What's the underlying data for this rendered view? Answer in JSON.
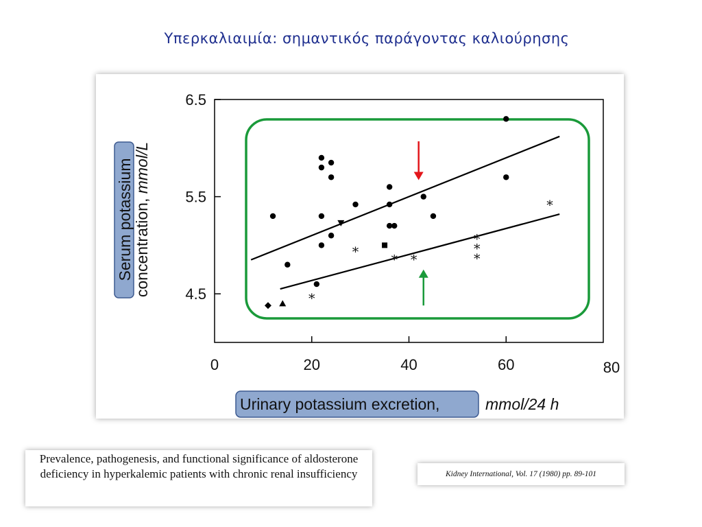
{
  "slide": {
    "title": "Υπερκαλιαιμία: σημαντικός παράγοντας καλιούρησης"
  },
  "references": {
    "article_title": "Prevalence, pathogenesis, and functional significance of aldosterone deficiency in hyperkalemic patients with chronic renal insufficiency",
    "journal": "Kidney International, Vol. 17 (1980) pp. 89-101"
  },
  "colors": {
    "highlight_box": "#1a9a3a",
    "label_box_fill": "#8fa8cf",
    "label_box_border": "#3d5a90",
    "arrow_up": "#1a9a3a",
    "arrow_down": "#e3161b",
    "title": "#1f2f8f"
  },
  "chart_data": {
    "type": "scatter",
    "xlabel_highlight": "Urinary potassium excretion,",
    "xlabel_unit": "mmol/24 h",
    "ylabel_highlight": "Serum potassium",
    "ylabel_rest": "concentration,",
    "ylabel_unit": "mmol/L",
    "xlim": [
      0,
      80
    ],
    "ylim": [
      4.0,
      6.5
    ],
    "x_ticks": [
      {
        "value": 0,
        "label": "0"
      },
      {
        "value": 20,
        "label": "20"
      },
      {
        "value": 40,
        "label": "40"
      },
      {
        "value": 60,
        "label": "60"
      },
      {
        "value": 80,
        "label": "80"
      }
    ],
    "y_ticks": [
      {
        "value": 4.5,
        "label": "4.5"
      },
      {
        "value": 5.5,
        "label": "5.5"
      },
      {
        "value": 6.5,
        "label": "6.5"
      }
    ],
    "series": [
      {
        "marker": "circle",
        "points": [
          [
            12,
            5.3
          ],
          [
            22,
            5.9
          ],
          [
            22,
            5.8
          ],
          [
            24,
            5.85
          ],
          [
            24,
            5.7
          ],
          [
            22,
            5.3
          ],
          [
            22,
            5.0
          ],
          [
            24,
            5.1
          ],
          [
            29,
            5.42
          ],
          [
            15,
            4.8
          ],
          [
            21,
            4.6
          ],
          [
            36,
            5.6
          ],
          [
            36,
            5.42
          ],
          [
            36,
            5.2
          ],
          [
            37,
            5.2
          ],
          [
            43,
            5.5
          ],
          [
            45,
            5.3
          ],
          [
            60,
            6.3
          ],
          [
            60,
            5.7
          ]
        ]
      },
      {
        "marker": "asterisk",
        "points": [
          [
            20,
            4.47
          ],
          [
            29,
            4.95
          ],
          [
            37,
            4.87
          ],
          [
            41,
            4.87
          ],
          [
            54,
            5.08
          ],
          [
            54,
            4.98
          ],
          [
            54,
            4.88
          ],
          [
            69,
            5.43
          ]
        ]
      },
      {
        "marker": "triangle-down",
        "points": [
          [
            26,
            5.23
          ]
        ]
      },
      {
        "marker": "square",
        "points": [
          [
            35,
            5.0
          ]
        ]
      },
      {
        "marker": "diamond",
        "points": [
          [
            11,
            4.38
          ]
        ]
      },
      {
        "marker": "triangle-up",
        "points": [
          [
            14,
            4.4
          ]
        ]
      }
    ],
    "regression_lines": [
      {
        "from": [
          7.5,
          4.85
        ],
        "to": [
          71,
          6.12
        ]
      },
      {
        "from": [
          13.5,
          4.55
        ],
        "to": [
          71,
          5.32
        ]
      }
    ],
    "annotations": {
      "down_arrow": {
        "x": 42,
        "from_y": 6.07,
        "to_y": 5.67
      },
      "up_arrow": {
        "x": 43,
        "from_y": 4.38,
        "to_y": 4.75
      }
    }
  }
}
